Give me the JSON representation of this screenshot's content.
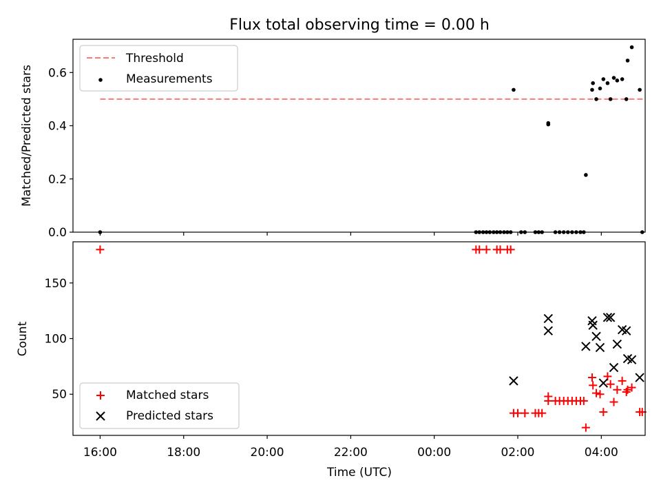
{
  "figure": {
    "title": "Flux total observing time = 0.00 h"
  },
  "chart_data": [
    {
      "panel": "top",
      "type": "scatter",
      "title": "Flux total observing time = 0.00 h",
      "ylabel": "Matched/Predicted stars",
      "xlabel": "",
      "x_unit": "hours relative to 00:00 UTC (negative = previous day)",
      "xlim": [
        -8.65,
        5.05
      ],
      "ylim": [
        0.0,
        0.725
      ],
      "yticks": [
        0.0,
        0.2,
        0.4,
        0.6
      ],
      "ytick_labels": [
        "0.0",
        "0.2",
        "0.4",
        "0.6"
      ],
      "legend_position": "upper-left",
      "series": [
        {
          "name": "Threshold",
          "kind": "line",
          "style": "dashed",
          "color": "#ff7777",
          "x": [
            -8.0,
            5.0
          ],
          "y": [
            0.5,
            0.5
          ]
        },
        {
          "name": "Measurements",
          "kind": "scatter",
          "marker": "dot",
          "color": "#000000",
          "x": [
            -8.0,
            1.0,
            1.08,
            1.17,
            1.25,
            1.33,
            1.42,
            1.5,
            1.58,
            1.67,
            1.75,
            1.83,
            1.9,
            2.08,
            2.17,
            2.42,
            2.5,
            2.58,
            2.73,
            2.73,
            2.9,
            3.0,
            3.1,
            3.2,
            3.3,
            3.4,
            3.5,
            3.58,
            3.63,
            3.78,
            3.8,
            3.88,
            3.97,
            4.05,
            4.15,
            4.22,
            4.3,
            4.38,
            4.5,
            4.6,
            4.63,
            4.73,
            4.92,
            4.98
          ],
          "y": [
            0.0,
            0.0,
            0.0,
            0.0,
            0.0,
            0.0,
            0.0,
            0.0,
            0.0,
            0.0,
            0.0,
            0.0,
            0.535,
            0.0,
            0.0,
            0.0,
            0.0,
            0.0,
            0.405,
            0.41,
            0.0,
            0.0,
            0.0,
            0.0,
            0.0,
            0.0,
            0.0,
            0.0,
            0.215,
            0.535,
            0.56,
            0.5,
            0.54,
            0.575,
            0.56,
            0.5,
            0.58,
            0.57,
            0.575,
            0.5,
            0.645,
            0.695,
            0.535,
            0.0
          ]
        }
      ]
    },
    {
      "panel": "bottom",
      "type": "scatter",
      "title": "",
      "xlabel": "Time (UTC)",
      "ylabel": "Count",
      "x_unit": "hours relative to 00:00 UTC (negative = previous day)",
      "xlim": [
        -8.65,
        5.05
      ],
      "ylim": [
        13,
        187
      ],
      "xticks": [
        -8,
        -6,
        -4,
        -2,
        0,
        2,
        4
      ],
      "xtick_labels": [
        "16:00",
        "18:00",
        "20:00",
        "22:00",
        "00:00",
        "02:00",
        "04:00"
      ],
      "yticks": [
        50,
        100,
        150
      ],
      "ytick_labels": [
        "50",
        "100",
        "150"
      ],
      "legend_position": "lower-left",
      "series": [
        {
          "name": "Matched stars",
          "kind": "scatter",
          "marker": "plus",
          "color": "#ff0000",
          "x": [
            -8.0,
            1.0,
            1.08,
            1.25,
            1.5,
            1.58,
            1.75,
            1.83,
            1.9,
            2.0,
            2.17,
            2.42,
            2.5,
            2.58,
            2.73,
            2.73,
            2.9,
            3.0,
            3.1,
            3.2,
            3.3,
            3.4,
            3.5,
            3.58,
            3.63,
            3.78,
            3.8,
            3.88,
            3.97,
            4.05,
            4.15,
            4.22,
            4.3,
            4.38,
            4.5,
            4.6,
            4.63,
            4.73,
            4.92,
            4.98
          ],
          "y": [
            180,
            180,
            180,
            180,
            180,
            180,
            180,
            180,
            33,
            33,
            33,
            33,
            33,
            33,
            48,
            44,
            44,
            44,
            44,
            44,
            44,
            44,
            44,
            44,
            20,
            65,
            58,
            51,
            50,
            34,
            66,
            59,
            43,
            54,
            62,
            52,
            54,
            56,
            34,
            34
          ]
        },
        {
          "name": "Predicted stars",
          "kind": "scatter",
          "marker": "x",
          "color": "#000000",
          "x": [
            1.9,
            2.73,
            2.73,
            3.63,
            3.78,
            3.8,
            3.88,
            3.97,
            4.05,
            4.15,
            4.22,
            4.3,
            4.38,
            4.5,
            4.6,
            4.63,
            4.73,
            4.92
          ],
          "y": [
            62,
            118,
            107,
            93,
            116,
            112,
            102,
            92,
            60,
            119,
            119,
            74,
            95,
            108,
            107,
            82,
            81,
            65
          ]
        }
      ]
    }
  ]
}
